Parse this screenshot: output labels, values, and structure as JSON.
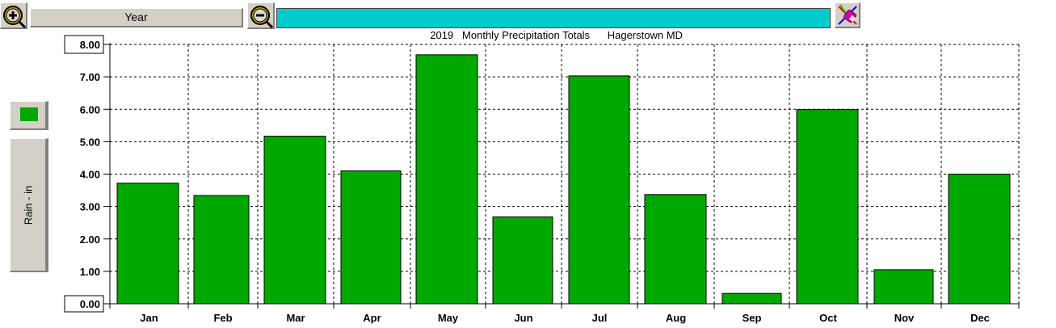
{
  "toolbar": {
    "period_label": "Year",
    "zoom_in_icon": "zoom-in-magnifier-icon",
    "zoom_out_icon": "zoom-out-magnifier-icon",
    "eraser_icon": "eraser-icon",
    "title_text": "2019   Monthly Precipitation Totals      Hagerstown MD"
  },
  "legend": {
    "series_color": "#00a800",
    "ylabel_text": "Rain - in"
  },
  "chart_data": {
    "type": "bar",
    "title": "2019   Monthly Precipitation Totals      Hagerstown MD",
    "xlabel": "",
    "ylabel": "Rain - in",
    "ylim": [
      0,
      8
    ],
    "yticks": [
      "0.00",
      "1.00",
      "2.00",
      "3.00",
      "4.00",
      "5.00",
      "6.00",
      "7.00",
      "8.00"
    ],
    "grid": true,
    "categories": [
      "Jan",
      "Feb",
      "Mar",
      "Apr",
      "May",
      "Jun",
      "Jul",
      "Aug",
      "Sep",
      "Oct",
      "Nov",
      "Dec"
    ],
    "series": [
      {
        "color": "#00a800",
        "values": [
          3.72,
          3.34,
          5.17,
          4.1,
          7.68,
          2.68,
          7.03,
          3.37,
          0.32,
          5.99,
          1.05,
          4.0
        ]
      }
    ]
  }
}
